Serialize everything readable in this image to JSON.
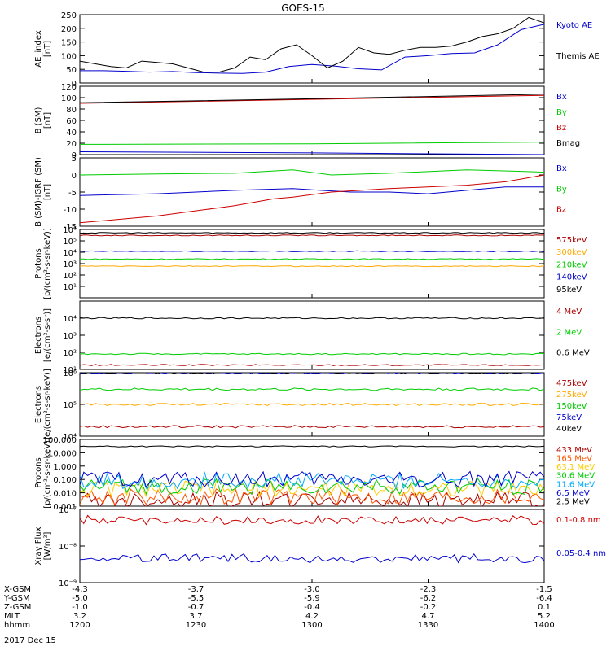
{
  "title": "GOES-15",
  "date_label": "2017 Dec 15",
  "bottom_rows": [
    {
      "label": "X-GSM",
      "values": [
        "-4.3",
        "-3.7",
        "-3.0",
        "-2.3",
        "-1.5"
      ]
    },
    {
      "label": "Y-GSM",
      "values": [
        "-5.0",
        "-5.5",
        "-5.9",
        "-6.2",
        "-6.4"
      ]
    },
    {
      "label": "Z-GSM",
      "values": [
        "-1.0",
        "-0.7",
        "-0.4",
        "-0.2",
        "0.1"
      ]
    },
    {
      "label": "MLT",
      "values": [
        "3.2",
        "3.7",
        "4.2",
        "4.7",
        "5.2"
      ]
    },
    {
      "label": "hhmm",
      "values": [
        "1200",
        "1230",
        "1300",
        "1330",
        "1400"
      ]
    }
  ],
  "chart_data": [
    {
      "type": "line",
      "ylabel": "AE_index\n[nT]",
      "x": [
        1200,
        1400
      ],
      "ylim": [
        0,
        250
      ],
      "scale": "linear",
      "ticks": [
        0,
        50,
        100,
        150,
        200,
        250
      ],
      "tick_labels": [
        "0",
        "50",
        "100",
        "150",
        "200",
        "250"
      ],
      "series": [
        {
          "name": "Kyoto AE",
          "color": "#0000cc",
          "x": [
            0,
            6,
            12,
            18,
            24,
            30,
            36,
            42,
            48,
            54,
            60,
            66,
            72,
            78,
            84,
            90,
            96,
            102,
            108,
            114,
            120
          ],
          "y": [
            45,
            45,
            43,
            40,
            42,
            38,
            36,
            35,
            40,
            60,
            68,
            62,
            52,
            48,
            95,
            100,
            108,
            110,
            140,
            195,
            215
          ]
        },
        {
          "name": "Themis AE",
          "color": "#000000",
          "x": [
            0,
            4,
            8,
            12,
            16,
            20,
            24,
            28,
            32,
            36,
            40,
            44,
            48,
            52,
            56,
            60,
            64,
            68,
            72,
            76,
            80,
            84,
            88,
            92,
            96,
            100,
            104,
            108,
            112,
            116,
            120
          ],
          "y": [
            80,
            70,
            60,
            55,
            80,
            75,
            70,
            55,
            40,
            40,
            55,
            95,
            85,
            125,
            140,
            100,
            55,
            80,
            130,
            110,
            105,
            120,
            130,
            130,
            135,
            150,
            170,
            180,
            200,
            240,
            220
          ]
        }
      ]
    },
    {
      "type": "line",
      "ylabel": "B (SM)\n[nT]",
      "ylim": [
        0,
        120
      ],
      "scale": "linear",
      "ticks": [
        0,
        20,
        40,
        60,
        80,
        100,
        120
      ],
      "tick_labels": [
        "0",
        "20",
        "40",
        "60",
        "80",
        "100",
        "120"
      ],
      "series": [
        {
          "name": "Bx",
          "color": "#0000cc",
          "x": [
            0,
            60,
            120
          ],
          "y": [
            5,
            3,
            0
          ]
        },
        {
          "name": "By",
          "color": "#00cc00",
          "x": [
            0,
            60,
            120
          ],
          "y": [
            18,
            19,
            22
          ]
        },
        {
          "name": "Bz",
          "color": "#cc0000",
          "x": [
            0,
            60,
            120
          ],
          "y": [
            90,
            97,
            104
          ]
        },
        {
          "name": "Bmag",
          "color": "#000000",
          "x": [
            0,
            60,
            120
          ],
          "y": [
            91,
            98,
            106
          ]
        }
      ]
    },
    {
      "type": "line",
      "ylabel": "B (SM)-IGRF (SM)\n[nT]",
      "ylim": [
        -15,
        5
      ],
      "scale": "linear",
      "ticks": [
        -15,
        -10,
        -5,
        0,
        5
      ],
      "tick_labels": [
        "-15",
        "-10",
        "-5",
        "0",
        "5"
      ],
      "series": [
        {
          "name": "Bx",
          "color": "#0000cc",
          "x": [
            0,
            20,
            40,
            55,
            70,
            80,
            90,
            100,
            110,
            120
          ],
          "y": [
            -6,
            -5.5,
            -4.5,
            -4,
            -5,
            -5,
            -5.5,
            -4.5,
            -3.5,
            -3.5
          ]
        },
        {
          "name": "By",
          "color": "#00cc00",
          "x": [
            0,
            20,
            40,
            55,
            65,
            80,
            100,
            115,
            120
          ],
          "y": [
            0,
            0.3,
            0.5,
            1.5,
            0,
            0.5,
            1.5,
            1,
            0.8
          ]
        },
        {
          "name": "Bz",
          "color": "#cc0000",
          "x": [
            0,
            20,
            40,
            50,
            55,
            65,
            80,
            100,
            110,
            120
          ],
          "y": [
            -14,
            -12,
            -9,
            -7,
            -6.5,
            -5,
            -4,
            -3,
            -2,
            0
          ]
        }
      ]
    },
    {
      "type": "line",
      "ylabel": "Protons\n[p/(cm²-s-sr-keV)]",
      "ylim": [
        1,
        1000000
      ],
      "scale": "log",
      "ticks": [
        10,
        100,
        1000,
        10000,
        100000,
        1000000
      ],
      "tick_labels": [
        "10¹",
        "10²",
        "10³",
        "10⁴",
        "10⁵",
        "10⁶"
      ],
      "series": [
        {
          "name": "575keV",
          "color": "#aa0000",
          "level": 300000
        },
        {
          "name": "300keV",
          "color": "#ffaa00",
          "level": 600
        },
        {
          "name": "210keV",
          "color": "#00cc00",
          "level": 2500
        },
        {
          "name": "140keV",
          "color": "#0000cc",
          "level": 12000
        },
        {
          "name": "95keV",
          "color": "#000000",
          "level": 500000
        }
      ]
    },
    {
      "type": "line",
      "ylabel": "Electrons\n[e/(cm²-s-sr)]",
      "ylim": [
        10,
        100000
      ],
      "scale": "log",
      "ticks": [
        10,
        100,
        1000,
        10000
      ],
      "tick_labels": [
        "10¹",
        "10²",
        "10³",
        "10⁴"
      ],
      "series": [
        {
          "name": "4 MeV",
          "color": "#aa0000",
          "level": 18
        },
        {
          "name": "2 MeV",
          "color": "#00cc00",
          "level": 80
        },
        {
          "name": "0.6 MeV",
          "color": "#000000",
          "level": 10000
        }
      ]
    },
    {
      "type": "line",
      "ylabel": "Electrons\n[e/(cm²-s-sr-keV)]",
      "ylim": [
        10000,
        1000000
      ],
      "scale": "log",
      "ticks": [
        10000,
        100000,
        1000000
      ],
      "tick_labels": [
        "10⁴",
        "10⁵",
        "10⁶"
      ],
      "series": [
        {
          "name": "475keV",
          "color": "#aa0000",
          "level": 20000
        },
        {
          "name": "275keV",
          "color": "#ffaa00",
          "level": 100000
        },
        {
          "name": "150keV",
          "color": "#00cc00",
          "level": 300000
        },
        {
          "name": "75keV",
          "color": "#0000cc",
          "level": 1000000
        },
        {
          "name": "40keV",
          "color": "#000000",
          "level": 1000000
        }
      ]
    },
    {
      "type": "line",
      "ylabel": "Protons\n[p/(cm²-s-sr-keV)]",
      "ylim": [
        0.001,
        100
      ],
      "scale": "log",
      "ticks": [
        0.001,
        0.01,
        0.1,
        1,
        10,
        100
      ],
      "tick_labels": [
        "0.001",
        "0.010",
        "0.100",
        "1.000",
        "10.000",
        "100.000"
      ],
      "series": [
        {
          "name": "433 MeV",
          "color": "#aa0000",
          "level": 0.003
        },
        {
          "name": "165 MeV",
          "color": "#ff5500",
          "level": 0.005
        },
        {
          "name": "63.1 MeV",
          "color": "#ffcc00",
          "level": 0.02
        },
        {
          "name": "30.6 MeV",
          "color": "#00cc00",
          "level": 0.03
        },
        {
          "name": "11.6 MeV",
          "color": "#00aaff",
          "level": 0.08
        },
        {
          "name": "6.5 MeV",
          "color": "#0000cc",
          "level": 0.1
        },
        {
          "name": "2.5 MeV",
          "color": "#000000",
          "level": 30
        }
      ]
    },
    {
      "type": "line",
      "ylabel": "Xray Flux\n[W/m²]",
      "ylim": [
        1e-09,
        1e-07
      ],
      "scale": "log",
      "ticks": [
        1e-09,
        1e-08,
        1e-07
      ],
      "tick_labels": [
        "10⁻⁹",
        "10⁻⁸",
        "10⁻⁷"
      ],
      "series": [
        {
          "name": "0.1-0.8 nm",
          "color": "#cc0000",
          "level": 5e-08
        },
        {
          "name": "0.05-0.4 nm",
          "color": "#0000cc",
          "level": 4.5e-09
        }
      ]
    }
  ]
}
